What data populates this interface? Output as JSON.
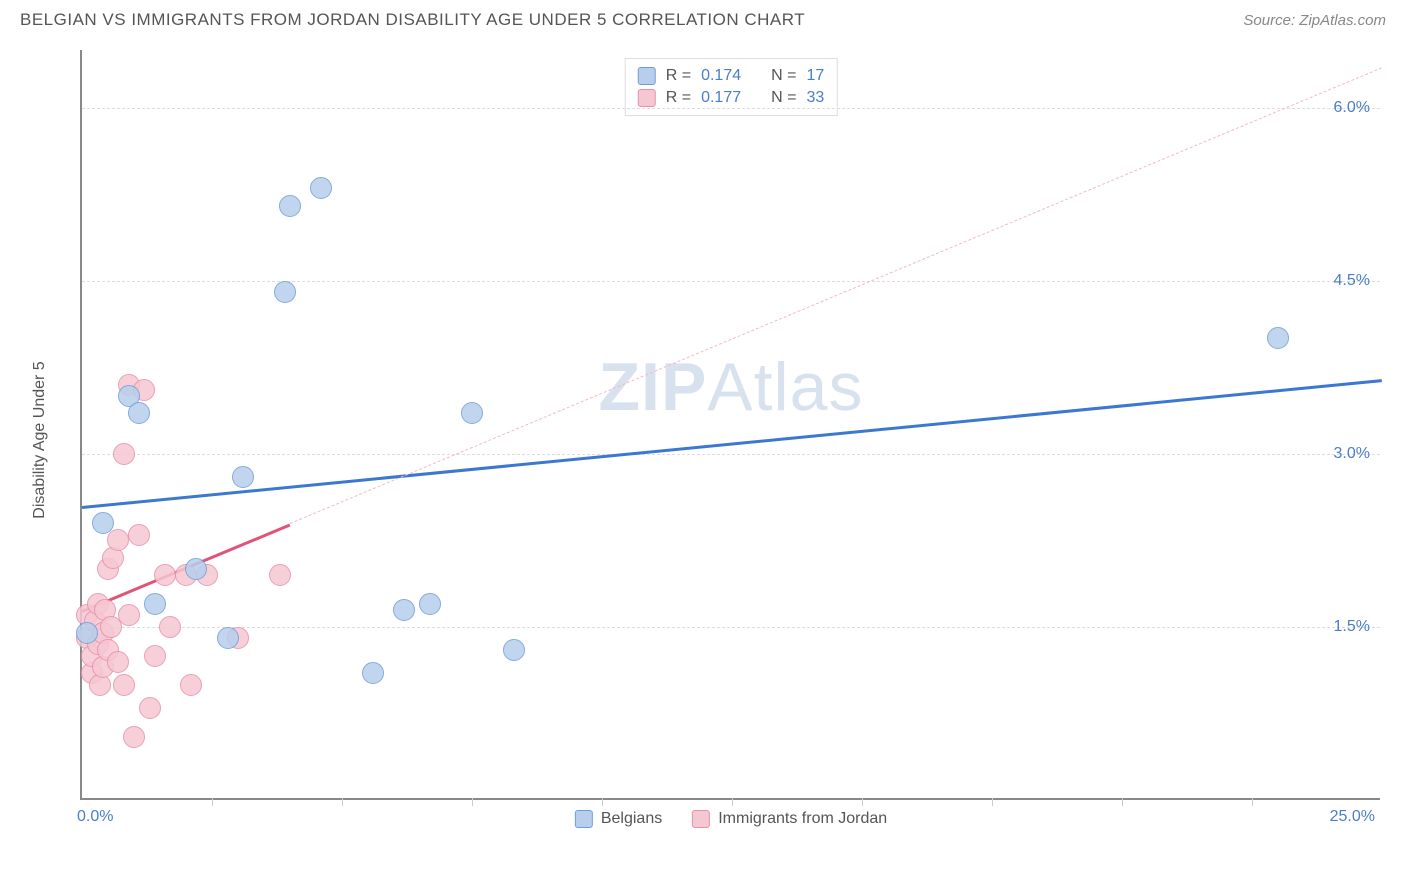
{
  "header": {
    "title": "BELGIAN VS IMMIGRANTS FROM JORDAN DISABILITY AGE UNDER 5 CORRELATION CHART",
    "source_prefix": "Source: ",
    "source_name": "ZipAtlas.com"
  },
  "axes": {
    "y_label": "Disability Age Under 5",
    "x_min": 0.0,
    "x_max": 25.0,
    "y_min": 0.0,
    "y_max": 6.5,
    "y_ticks": [
      1.5,
      3.0,
      4.5,
      6.0
    ],
    "y_tick_labels": [
      "1.5%",
      "3.0%",
      "4.5%",
      "6.0%"
    ],
    "x_ticks": [
      2.5,
      5.0,
      7.5,
      10.0,
      12.5,
      15.0,
      17.5,
      20.0,
      22.5
    ],
    "x_min_label": "0.0%",
    "x_max_label": "25.0%"
  },
  "series": {
    "belgians": {
      "label": "Belgians",
      "R": "0.174",
      "N": "17",
      "fill": "#b7cfec",
      "stroke": "#6f9dd8",
      "trend_color": "#3b78cf",
      "trend": {
        "x1": 0.0,
        "y1": 2.55,
        "x2": 25.0,
        "y2": 3.65
      },
      "marker_radius": 11,
      "points": [
        [
          0.1,
          1.45
        ],
        [
          0.4,
          2.4
        ],
        [
          0.9,
          3.5
        ],
        [
          1.1,
          3.35
        ],
        [
          1.4,
          1.7
        ],
        [
          2.2,
          2.0
        ],
        [
          2.8,
          1.4
        ],
        [
          3.1,
          2.8
        ],
        [
          3.9,
          4.4
        ],
        [
          4.6,
          5.3
        ],
        [
          4.0,
          5.15
        ],
        [
          5.6,
          1.1
        ],
        [
          6.2,
          1.65
        ],
        [
          6.7,
          1.7
        ],
        [
          7.5,
          3.35
        ],
        [
          8.3,
          1.3
        ],
        [
          23.0,
          4.0
        ]
      ]
    },
    "jordan": {
      "label": "Immigrants from Jordan",
      "R": "0.177",
      "N": "33",
      "fill": "#f5c7d3",
      "stroke": "#e98fa8",
      "trend_color": "#e05577",
      "trend_solid": {
        "x1": 0.0,
        "y1": 1.65,
        "x2": 4.0,
        "y2": 2.4
      },
      "trend_dash": {
        "x1": 4.0,
        "y1": 2.4,
        "x2": 25.0,
        "y2": 6.35
      },
      "marker_radius": 11,
      "points": [
        [
          0.1,
          1.6
        ],
        [
          0.1,
          1.4
        ],
        [
          0.2,
          1.1
        ],
        [
          0.2,
          1.25
        ],
        [
          0.25,
          1.55
        ],
        [
          0.3,
          1.7
        ],
        [
          0.3,
          1.35
        ],
        [
          0.35,
          1.0
        ],
        [
          0.4,
          1.15
        ],
        [
          0.4,
          1.45
        ],
        [
          0.45,
          1.65
        ],
        [
          0.5,
          1.3
        ],
        [
          0.5,
          2.0
        ],
        [
          0.55,
          1.5
        ],
        [
          0.6,
          2.1
        ],
        [
          0.7,
          1.2
        ],
        [
          0.7,
          2.25
        ],
        [
          0.8,
          1.0
        ],
        [
          0.8,
          3.0
        ],
        [
          0.9,
          1.6
        ],
        [
          0.9,
          3.6
        ],
        [
          1.0,
          0.55
        ],
        [
          1.1,
          2.3
        ],
        [
          1.2,
          3.55
        ],
        [
          1.3,
          0.8
        ],
        [
          1.4,
          1.25
        ],
        [
          1.6,
          1.95
        ],
        [
          1.7,
          1.5
        ],
        [
          2.0,
          1.95
        ],
        [
          2.1,
          1.0
        ],
        [
          2.4,
          1.95
        ],
        [
          3.0,
          1.4
        ],
        [
          3.8,
          1.95
        ]
      ]
    }
  },
  "legend_top": {
    "r_label": "R =",
    "n_label": "N ="
  },
  "watermark": {
    "bold": "ZIP",
    "rest": "Atlas"
  },
  "colors": {
    "grid": "#dddddd",
    "axis": "#888888",
    "tick_text": "#4a7ec9",
    "label_text": "#555555"
  }
}
